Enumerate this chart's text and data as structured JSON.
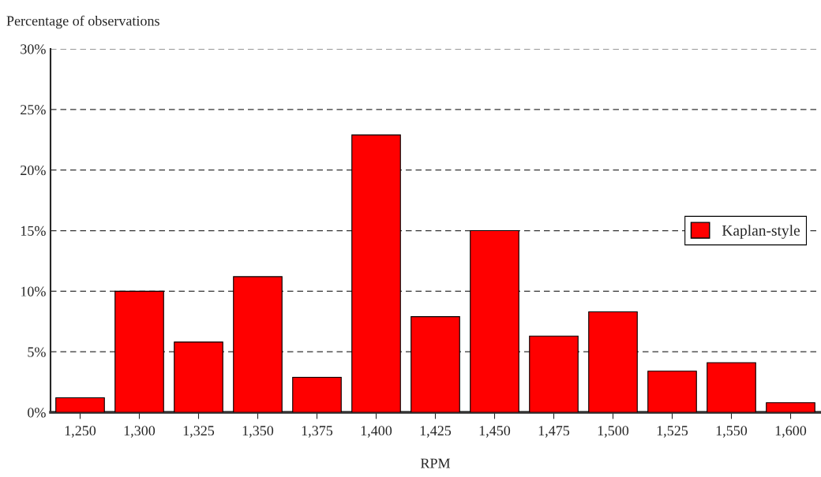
{
  "chart_data": {
    "type": "bar",
    "ylabel": "Percentage of observations",
    "xlabel": "RPM",
    "categories": [
      "1,250",
      "1,300",
      "1,325",
      "1,350",
      "1,375",
      "1,400",
      "1,425",
      "1,450",
      "1,475",
      "1,500",
      "1,525",
      "1,550",
      "1,600"
    ],
    "series": [
      {
        "name": "Kaplan-style",
        "color": "#ff0000",
        "values": [
          1.2,
          10.0,
          5.8,
          11.2,
          2.9,
          22.9,
          7.9,
          15.0,
          6.3,
          8.3,
          3.4,
          4.1,
          0.8
        ]
      }
    ],
    "ylim": [
      0,
      30
    ],
    "yticks": [
      {
        "value": 0,
        "label": "0%"
      },
      {
        "value": 5,
        "label": "5%"
      },
      {
        "value": 10,
        "label": "10%"
      },
      {
        "value": 15,
        "label": "15%"
      },
      {
        "value": 20,
        "label": "20%"
      },
      {
        "value": 25,
        "label": "25%"
      },
      {
        "value": 30,
        "label": "30%"
      }
    ],
    "grid": "y",
    "legend": "right"
  }
}
